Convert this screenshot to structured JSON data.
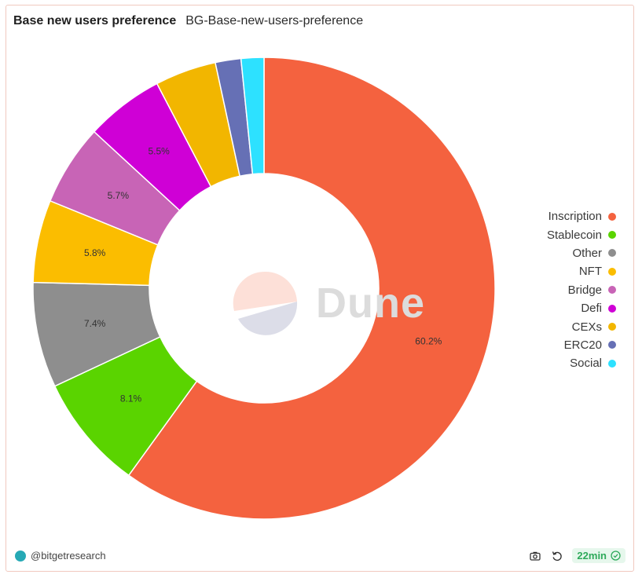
{
  "header": {
    "title": "Base new users preference",
    "subtitle": "BG-Base-new-users-preference"
  },
  "watermark": {
    "text": "Dune"
  },
  "footer": {
    "author": "@bitgetresearch",
    "refresh_label": "22min",
    "icons": [
      "camera-icon",
      "refresh-icon",
      "check-circle-icon"
    ]
  },
  "chart_data": {
    "type": "pie",
    "donut": true,
    "labels_format": "percent",
    "legend_position": "right",
    "series": [
      {
        "name": "Inscription",
        "value": 60.2,
        "label": "60.2%",
        "color": "#f4623f"
      },
      {
        "name": "Stablecoin",
        "value": 8.1,
        "label": "8.1%",
        "color": "#5ad400"
      },
      {
        "name": "Other",
        "value": 7.4,
        "label": "7.4%",
        "color": "#8e8e8e"
      },
      {
        "name": "NFT",
        "value": 5.8,
        "label": "5.8%",
        "color": "#fbbd00"
      },
      {
        "name": "Bridge",
        "value": 5.7,
        "label": "5.7%",
        "color": "#c864b6"
      },
      {
        "name": "Defi",
        "value": 5.5,
        "label": "5.5%",
        "color": "#cf00d6"
      },
      {
        "name": "CEXs",
        "value": 4.3,
        "label": "",
        "color": "#f2b600"
      },
      {
        "name": "ERC20",
        "value": 1.8,
        "label": "",
        "color": "#6670b5"
      },
      {
        "name": "Social",
        "value": 1.6,
        "label": "",
        "color": "#2de1ff"
      }
    ]
  }
}
